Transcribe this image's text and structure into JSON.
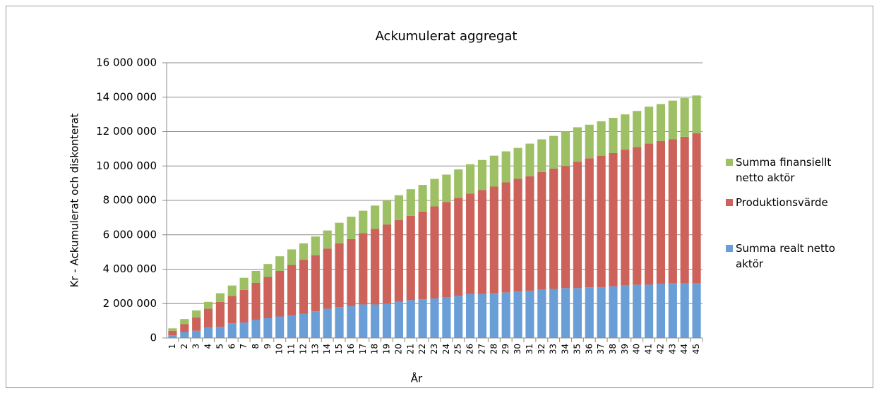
{
  "chart_data": {
    "type": "stacked_bar",
    "title": "Ackumulerat aggregat",
    "x_label": "År",
    "y_label": "Kr - Ackumulerat och diskonterat",
    "categories": [
      "1",
      "2",
      "3",
      "4",
      "5",
      "6",
      "7",
      "8",
      "9",
      "10",
      "11",
      "12",
      "13",
      "14",
      "15",
      "16",
      "17",
      "18",
      "19",
      "20",
      "21",
      "22",
      "23",
      "24",
      "25",
      "26",
      "27",
      "28",
      "29",
      "30",
      "31",
      "32",
      "33",
      "34",
      "35",
      "36",
      "37",
      "38",
      "39",
      "40",
      "41",
      "42",
      "43",
      "44",
      "45"
    ],
    "series": [
      {
        "name": "Summa realt netto aktör",
        "color": "#6a9ed6",
        "values": [
          150000,
          350000,
          420000,
          600000,
          650000,
          850000,
          900000,
          1050000,
          1150000,
          1250000,
          1300000,
          1400000,
          1550000,
          1700000,
          1800000,
          1850000,
          1950000,
          1950000,
          2000000,
          2100000,
          2200000,
          2250000,
          2300000,
          2350000,
          2450000,
          2550000,
          2550000,
          2600000,
          2650000,
          2700000,
          2750000,
          2800000,
          2850000,
          2900000,
          2900000,
          2950000,
          2950000,
          3000000,
          3050000,
          3100000,
          3100000,
          3150000,
          3200000,
          3200000,
          3200000
        ]
      },
      {
        "name": "Produktionsvärde",
        "color": "#cc625a",
        "values": [
          270000,
          450000,
          780000,
          1100000,
          1450000,
          1600000,
          1900000,
          2150000,
          2400000,
          2650000,
          2950000,
          3150000,
          3250000,
          3500000,
          3700000,
          3900000,
          4150000,
          4400000,
          4600000,
          4750000,
          4900000,
          5100000,
          5350000,
          5550000,
          5700000,
          5850000,
          6050000,
          6200000,
          6400000,
          6550000,
          6650000,
          6850000,
          7000000,
          7100000,
          7350000,
          7500000,
          7650000,
          7750000,
          7900000,
          8000000,
          8200000,
          8300000,
          8350000,
          8500000,
          8700000
        ]
      },
      {
        "name": "Summa finansiellt netto aktör",
        "color": "#9cc063",
        "values": [
          140000,
          300000,
          400000,
          400000,
          500000,
          600000,
          700000,
          700000,
          750000,
          850000,
          900000,
          950000,
          1100000,
          1050000,
          1200000,
          1300000,
          1300000,
          1350000,
          1400000,
          1450000,
          1550000,
          1550000,
          1600000,
          1600000,
          1650000,
          1700000,
          1750000,
          1800000,
          1800000,
          1800000,
          1900000,
          1900000,
          1900000,
          2000000,
          2000000,
          1950000,
          2000000,
          2050000,
          2050000,
          2100000,
          2150000,
          2150000,
          2250000,
          2250000,
          2200000
        ]
      }
    ],
    "ylim": [
      0,
      16000000
    ],
    "yticks": [
      0,
      {
        "value": 2000000,
        "label": "2 000 000"
      },
      {
        "value": 4000000,
        "label": "4 000 000"
      },
      {
        "value": 6000000,
        "label": "6 000 000"
      },
      {
        "value": 8000000,
        "label": "8 000 000"
      },
      {
        "value": 10000000,
        "label": "10 000 000"
      },
      {
        "value": 12000000,
        "label": "12 000 000"
      },
      {
        "value": 14000000,
        "label": "14 000 000"
      },
      {
        "value": 16000000,
        "label": "16 000 000"
      }
    ],
    "grid": true,
    "legend": "right"
  }
}
